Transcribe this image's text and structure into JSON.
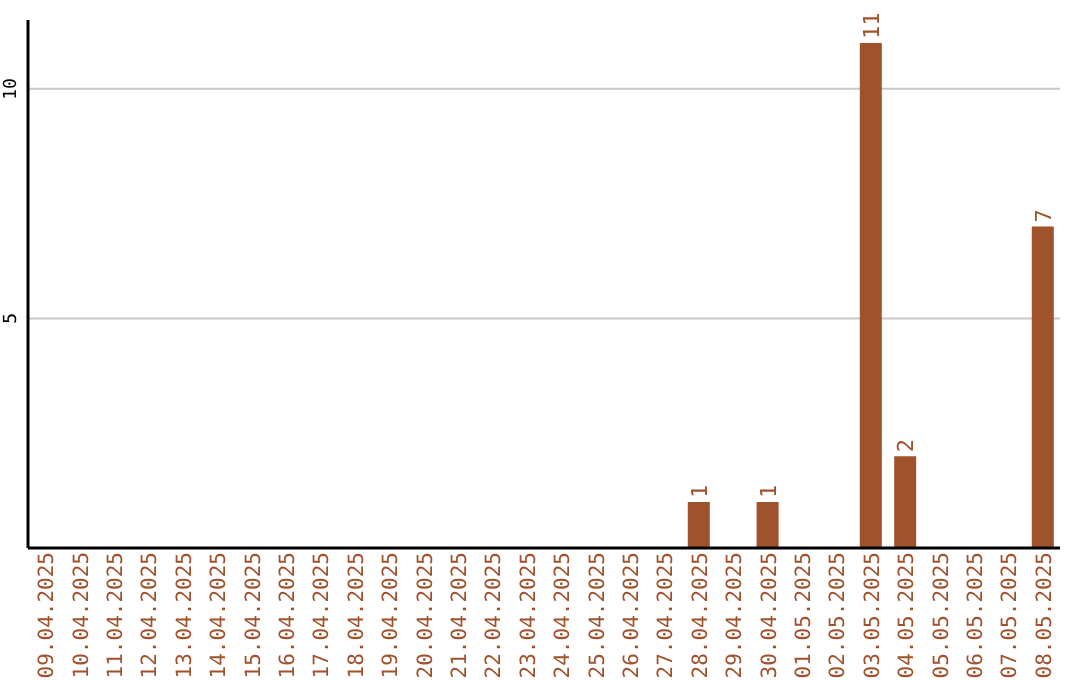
{
  "chart_data": {
    "type": "bar",
    "categories": [
      "09.04.2025",
      "10.04.2025",
      "11.04.2025",
      "12.04.2025",
      "13.04.2025",
      "14.04.2025",
      "15.04.2025",
      "16.04.2025",
      "17.04.2025",
      "18.04.2025",
      "19.04.2025",
      "20.04.2025",
      "21.04.2025",
      "22.04.2025",
      "23.04.2025",
      "24.04.2025",
      "25.04.2025",
      "26.04.2025",
      "27.04.2025",
      "28.04.2025",
      "29.04.2025",
      "30.04.2025",
      "01.05.2025",
      "02.05.2025",
      "03.05.2025",
      "04.05.2025",
      "05.05.2025",
      "06.05.2025",
      "07.05.2025",
      "08.05.2025"
    ],
    "values": [
      0,
      0,
      0,
      0,
      0,
      0,
      0,
      0,
      0,
      0,
      0,
      0,
      0,
      0,
      0,
      0,
      0,
      0,
      0,
      1,
      0,
      1,
      0,
      0,
      11,
      2,
      0,
      0,
      0,
      7
    ],
    "value_labels": [
      null,
      null,
      null,
      null,
      null,
      null,
      null,
      null,
      null,
      null,
      null,
      null,
      null,
      null,
      null,
      null,
      null,
      null,
      null,
      "1",
      null,
      "1",
      null,
      null,
      "11",
      "2",
      null,
      null,
      null,
      "7"
    ],
    "color": "#a0522d",
    "ylim": [
      0,
      11.5
    ],
    "yticks": [
      5,
      10
    ],
    "grid": "y"
  }
}
